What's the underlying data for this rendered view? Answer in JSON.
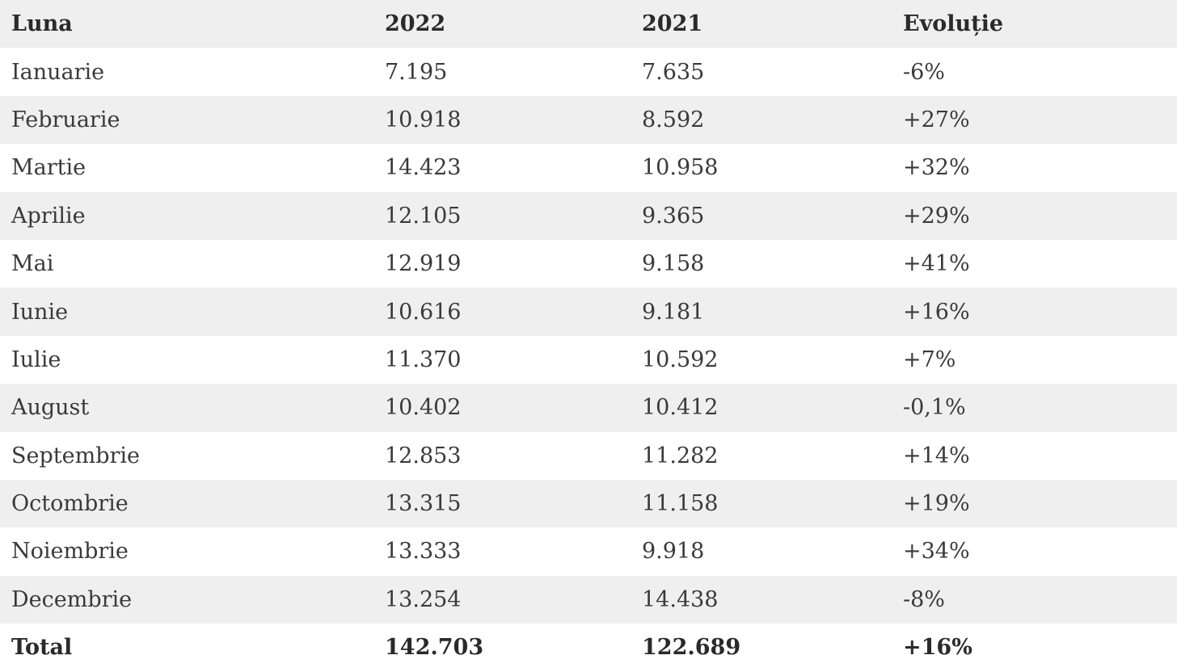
{
  "table": {
    "headers": [
      "Luna",
      "2022",
      "2021",
      "Evoluție"
    ],
    "rows": [
      [
        "Ianuarie",
        "7.195",
        "7.635",
        "-6%"
      ],
      [
        "Februarie",
        "10.918",
        "8.592",
        "+27%"
      ],
      [
        "Martie",
        "14.423",
        "10.958",
        "+32%"
      ],
      [
        "Aprilie",
        "12.105",
        "9.365",
        "+29%"
      ],
      [
        "Mai",
        "12.919",
        "9.158",
        "+41%"
      ],
      [
        "Iunie",
        "10.616",
        "9.181",
        "+16%"
      ],
      [
        "Iulie",
        "11.370",
        "10.592",
        "+7%"
      ],
      [
        "August",
        "10.402",
        "10.412",
        "-0,1%"
      ],
      [
        "Septembrie",
        "12.853",
        "11.282",
        "+14%"
      ],
      [
        "Octombrie",
        "13.315",
        "11.158",
        "+19%"
      ],
      [
        "Noiembrie",
        "13.333",
        "9.918",
        "+34%"
      ],
      [
        "Decembrie",
        "13.254",
        "14.438",
        "-8%"
      ]
    ],
    "total": [
      "Total",
      "142.703",
      "122.689",
      "+16%"
    ]
  },
  "colors": {
    "stripe": "#efefef",
    "background": "#ffffff",
    "text": "#333333"
  }
}
